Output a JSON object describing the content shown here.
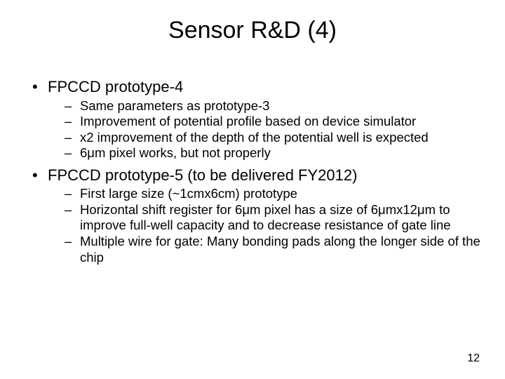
{
  "title": "Sensor R&D (4)",
  "bullets": [
    {
      "text": "FPCCD prototype-4",
      "sub": [
        "Same parameters as prototype-3",
        "Improvement of potential profile based on device simulator",
        "x2 improvement of the depth of the potential well is expected",
        "6μm pixel works, but not properly"
      ]
    },
    {
      "text": "FPCCD prototype-5 (to be delivered FY2012)",
      "sub": [
        "First large size (~1cmx6cm) prototype",
        "Horizontal shift register for 6μm pixel has a size of 6μmx12μm to improve full-well capacity and to decrease resistance of gate line",
        "Multiple wire for gate: Many bonding pads along the longer side of the chip"
      ]
    }
  ],
  "page_number": "12"
}
